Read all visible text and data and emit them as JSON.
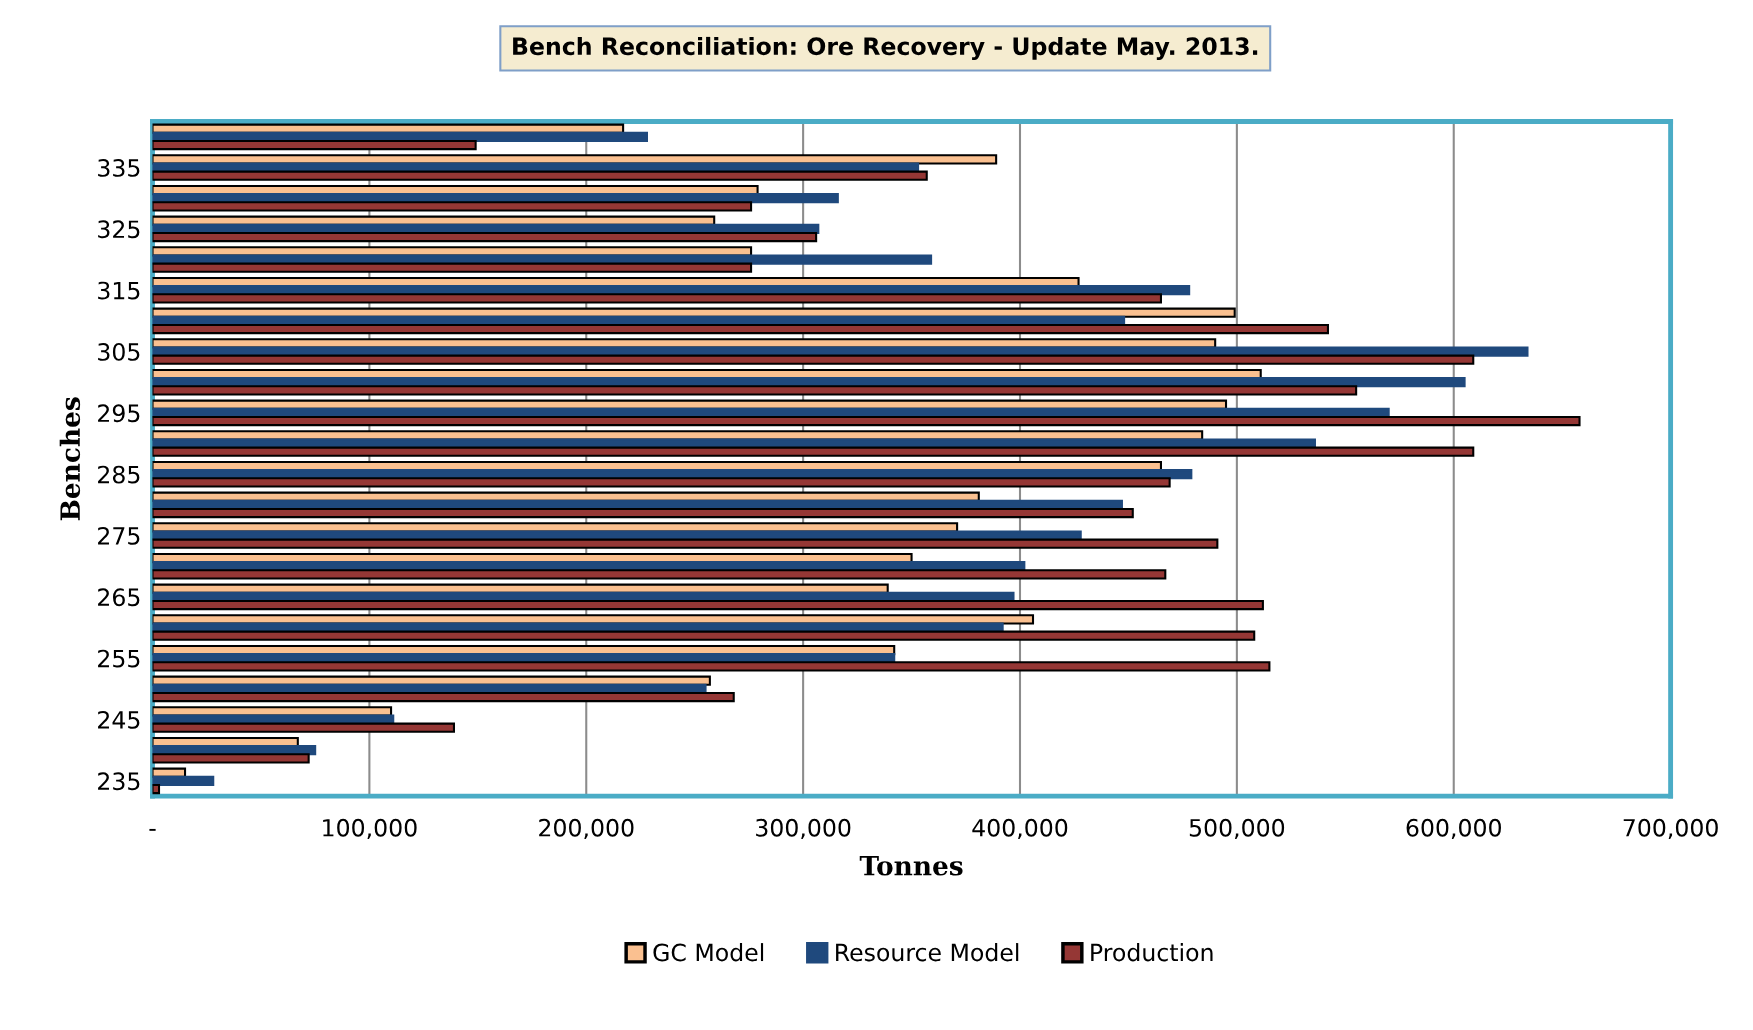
{
  "chart_data": {
    "type": "bar",
    "orientation": "horizontal",
    "title": "Bench Reconciliation: Ore Recovery - Update May. 2013.",
    "xlabel": "Tonnes",
    "ylabel": "Benches",
    "categories": [
      null,
      "335",
      null,
      "325",
      null,
      "315",
      null,
      "305",
      null,
      "295",
      null,
      "285",
      null,
      "275",
      null,
      "265",
      null,
      "255",
      null,
      "245",
      null,
      "235"
    ],
    "series": [
      {
        "name": "GC Model",
        "color": "#fac090",
        "values": [
          217000,
          389000,
          279000,
          259000,
          276000,
          427000,
          499000,
          490000,
          511000,
          495000,
          484000,
          465000,
          381000,
          371000,
          350000,
          339000,
          406000,
          342000,
          257000,
          110000,
          67000,
          15000
        ]
      },
      {
        "name": "Resource Model",
        "color": "#1f497d",
        "values": [
          228000,
          353000,
          316000,
          307000,
          359000,
          478000,
          448000,
          634000,
          605000,
          570000,
          536000,
          479000,
          447000,
          428000,
          402000,
          397000,
          392000,
          342000,
          255000,
          111000,
          75000,
          28000
        ]
      },
      {
        "name": "Production",
        "color": "#953735",
        "values": [
          149000,
          357000,
          276000,
          306000,
          276000,
          465000,
          542000,
          609000,
          555000,
          658000,
          609000,
          469000,
          452000,
          491000,
          467000,
          512000,
          508000,
          515000,
          268000,
          139000,
          72000,
          3000
        ]
      }
    ],
    "xlim": [
      0,
      700000
    ],
    "xticks": [
      {
        "value": 0,
        "label": "-"
      },
      {
        "value": 100000,
        "label": "100,000"
      },
      {
        "value": 200000,
        "label": "200,000"
      },
      {
        "value": 300000,
        "label": "300,000"
      },
      {
        "value": 400000,
        "label": "400,000"
      },
      {
        "value": 500000,
        "label": "500,000"
      },
      {
        "value": 600000,
        "label": "600,000"
      },
      {
        "value": 700000,
        "label": "700,000"
      }
    ],
    "grid": "x",
    "legend": "bottom"
  }
}
